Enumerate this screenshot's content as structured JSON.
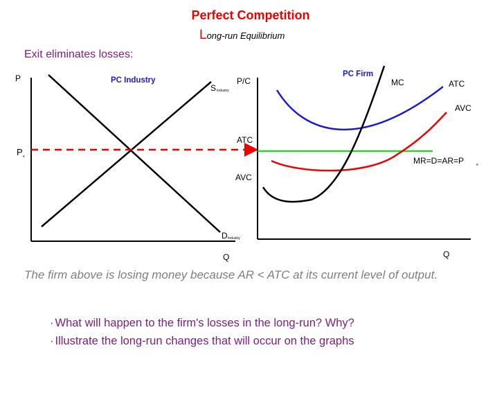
{
  "header": {
    "title": "Perfect Competition",
    "subtitle": {
      "initial": "L",
      "rest": "ong-run Equilibrium"
    },
    "lead": "Exit eliminates losses:"
  },
  "industry_graph": {
    "y_axis": "P",
    "title": "PC Industry",
    "supply": {
      "label": "S",
      "sub": "Industry"
    },
    "demand": {
      "label": "D",
      "sub": "Industry"
    },
    "price": {
      "label": "P",
      "sub": "e"
    },
    "x_axis": "Q"
  },
  "firm_graph": {
    "y_axis": "P/C",
    "title": "PC Firm",
    "curves": {
      "mc": "MC",
      "atc": "ATC",
      "avc": "AVC"
    },
    "axis_marks": {
      "atc": "ATC",
      "avc": "AVC"
    },
    "demand": {
      "label": "MR=D=AR=P",
      "sub": "e"
    },
    "x_axis": "Q"
  },
  "body": {
    "text": "The firm above is losing money because AR < ATC at its current level of output.",
    "bullets": [
      "What will happen to the firm's losses in the long-run? Why?",
      "Illustrate the long-run changes that will occur on the graphs"
    ]
  }
}
